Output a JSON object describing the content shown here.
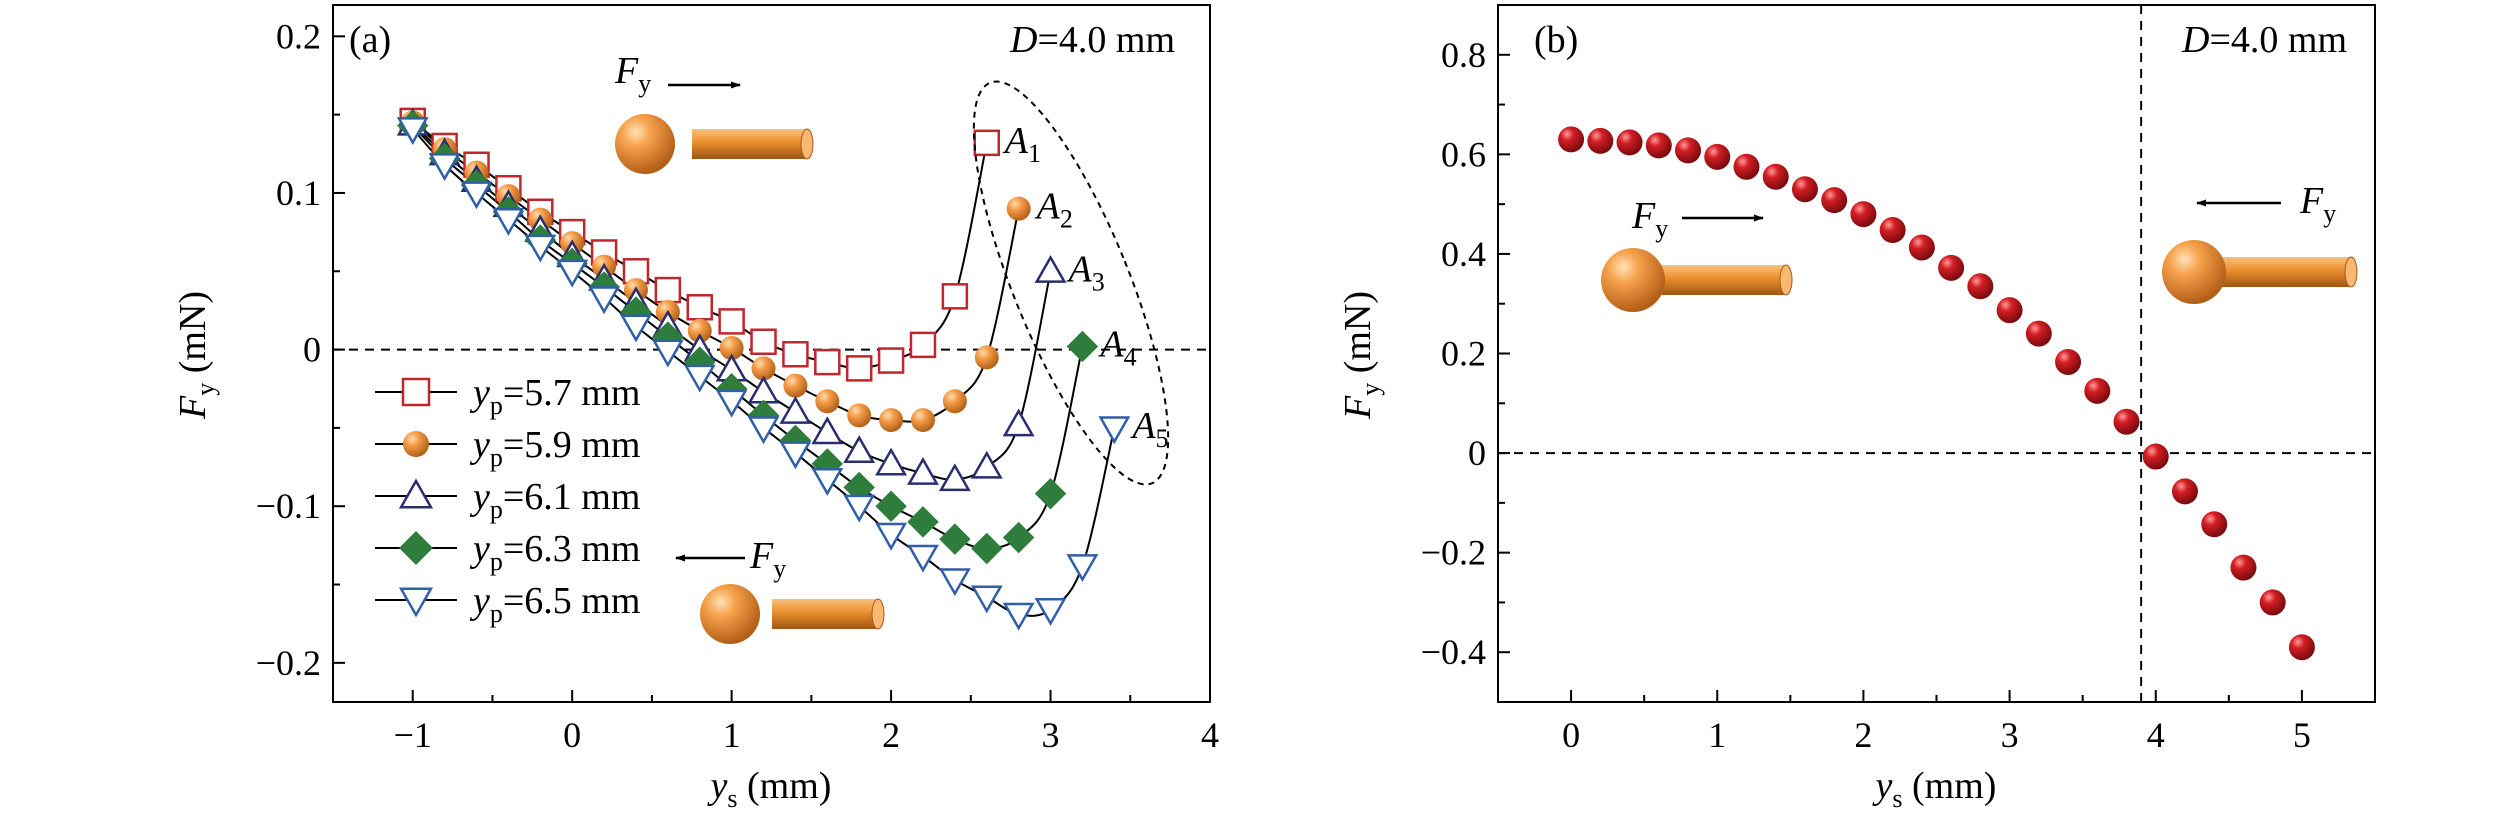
{
  "figure": {
    "panels": [
      "(a)",
      "(b)"
    ]
  },
  "chart_data": [
    {
      "panel": "(a)",
      "type": "line",
      "annotation": "D=4.0 mm",
      "xlabel": "ys (mm)",
      "ylabel": "Fy (mN)",
      "xlim": [
        -1.5,
        4
      ],
      "ylim": [
        -0.225,
        0.22
      ],
      "xticks": [
        "−1",
        "0",
        "1",
        "2",
        "3",
        "4"
      ],
      "yticks": [
        "−0.2",
        "−0.1",
        "0",
        "0.1",
        "0.2"
      ],
      "grid": false,
      "zero_line": "dashed",
      "legend_position": "lower-left",
      "series": [
        {
          "name": "yp=5.7 mm",
          "marker": "square-open",
          "color": "#c0272d",
          "x": [
            -1.0,
            -0.8,
            -0.6,
            -0.4,
            -0.2,
            0.0,
            0.2,
            0.4,
            0.6,
            0.8,
            1.0,
            1.2,
            1.4,
            1.6,
            1.8,
            2.0,
            2.2,
            2.4,
            2.6
          ],
          "y": [
            0.146,
            0.13,
            0.118,
            0.103,
            0.088,
            0.075,
            0.062,
            0.05,
            0.038,
            0.027,
            0.018,
            0.005,
            -0.003,
            -0.008,
            -0.012,
            -0.007,
            0.003,
            0.034,
            0.132
          ],
          "end_label": "A1"
        },
        {
          "name": "yp=5.9 mm",
          "marker": "circle-filled",
          "color": "#f0953c",
          "x": [
            -1.0,
            -0.8,
            -0.6,
            -0.4,
            -0.2,
            0.0,
            0.2,
            0.4,
            0.6,
            0.8,
            1.0,
            1.2,
            1.4,
            1.6,
            1.8,
            2.0,
            2.2,
            2.4,
            2.6,
            2.8
          ],
          "y": [
            0.145,
            0.128,
            0.113,
            0.098,
            0.083,
            0.068,
            0.053,
            0.038,
            0.024,
            0.012,
            0.001,
            -0.012,
            -0.023,
            -0.033,
            -0.042,
            -0.045,
            -0.045,
            -0.033,
            -0.005,
            0.09
          ],
          "end_label": "A2"
        },
        {
          "name": "yp=6.1 mm",
          "marker": "triangle-up-open",
          "color": "#2a2e6e",
          "x": [
            -1.0,
            -0.8,
            -0.6,
            -0.4,
            -0.2,
            0.0,
            0.2,
            0.4,
            0.6,
            0.8,
            1.0,
            1.2,
            1.4,
            1.6,
            1.8,
            2.0,
            2.2,
            2.4,
            2.6,
            2.8,
            3.0
          ],
          "y": [
            0.144,
            0.125,
            0.108,
            0.092,
            0.076,
            0.06,
            0.045,
            0.03,
            0.015,
            0.0,
            -0.013,
            -0.027,
            -0.04,
            -0.053,
            -0.065,
            -0.073,
            -0.079,
            -0.083,
            -0.075,
            -0.048,
            0.05
          ],
          "end_label": "A3"
        },
        {
          "name": "yp=6.3 mm",
          "marker": "diamond-filled",
          "color": "#2e7d3c",
          "x": [
            -1.0,
            -0.8,
            -0.6,
            -0.4,
            -0.2,
            0.0,
            0.2,
            0.4,
            0.6,
            0.8,
            1.0,
            1.2,
            1.4,
            1.6,
            1.8,
            2.0,
            2.2,
            2.4,
            2.6,
            2.8,
            3.0,
            3.2
          ],
          "y": [
            0.143,
            0.122,
            0.105,
            0.088,
            0.07,
            0.055,
            0.04,
            0.024,
            0.008,
            -0.008,
            -0.025,
            -0.042,
            -0.058,
            -0.073,
            -0.088,
            -0.1,
            -0.11,
            -0.121,
            -0.127,
            -0.12,
            -0.092,
            0.002
          ],
          "end_label": "A4"
        },
        {
          "name": "yp=6.5 mm",
          "marker": "triangle-down-open",
          "color": "#2f5fa8",
          "x": [
            -1.0,
            -0.8,
            -0.6,
            -0.4,
            -0.2,
            0.0,
            0.2,
            0.4,
            0.6,
            0.8,
            1.0,
            1.2,
            1.4,
            1.6,
            1.8,
            2.0,
            2.2,
            2.4,
            2.6,
            2.8,
            3.0,
            3.2,
            3.4
          ],
          "y": [
            0.141,
            0.118,
            0.1,
            0.083,
            0.066,
            0.05,
            0.033,
            0.015,
            -0.001,
            -0.017,
            -0.033,
            -0.05,
            -0.066,
            -0.083,
            -0.1,
            -0.118,
            -0.132,
            -0.147,
            -0.158,
            -0.169,
            -0.166,
            -0.138,
            -0.05
          ],
          "end_label": "A5"
        }
      ],
      "inset_labels": [
        "Fy",
        "Fy"
      ]
    },
    {
      "panel": "(b)",
      "type": "scatter",
      "annotation": "D=4.0 mm",
      "xlabel": "ys (mm)",
      "ylabel": "Fy (mN)",
      "xlim": [
        -0.5,
        5.5
      ],
      "ylim": [
        -0.5,
        0.9
      ],
      "xticks": [
        "0",
        "1",
        "2",
        "3",
        "4",
        "5"
      ],
      "yticks": [
        "−0.4",
        "−0.2",
        "0",
        "0.2",
        "0.4",
        "0.6",
        "0.8"
      ],
      "grid": false,
      "zero_line": "dashed",
      "vline_x": 3.9,
      "series": [
        {
          "marker": "sphere-red",
          "color": "#c4161c",
          "x": [
            0.0,
            0.2,
            0.4,
            0.6,
            0.8,
            1.0,
            1.2,
            1.4,
            1.6,
            1.8,
            2.0,
            2.2,
            2.4,
            2.6,
            2.8,
            3.0,
            3.2,
            3.4,
            3.6,
            3.8,
            4.0,
            4.2,
            4.4,
            4.6,
            4.8,
            5.0
          ],
          "y": [
            0.63,
            0.627,
            0.624,
            0.618,
            0.608,
            0.595,
            0.575,
            0.555,
            0.53,
            0.508,
            0.48,
            0.448,
            0.413,
            0.372,
            0.335,
            0.287,
            0.24,
            0.183,
            0.125,
            0.063,
            -0.007,
            -0.077,
            -0.143,
            -0.23,
            -0.3,
            -0.39
          ]
        }
      ],
      "inset_labels": [
        "Fy",
        "Fy"
      ]
    }
  ],
  "colors": {
    "sphere": "#f0953c",
    "rod": "#e98a2b",
    "red_point": "#c4161c"
  }
}
